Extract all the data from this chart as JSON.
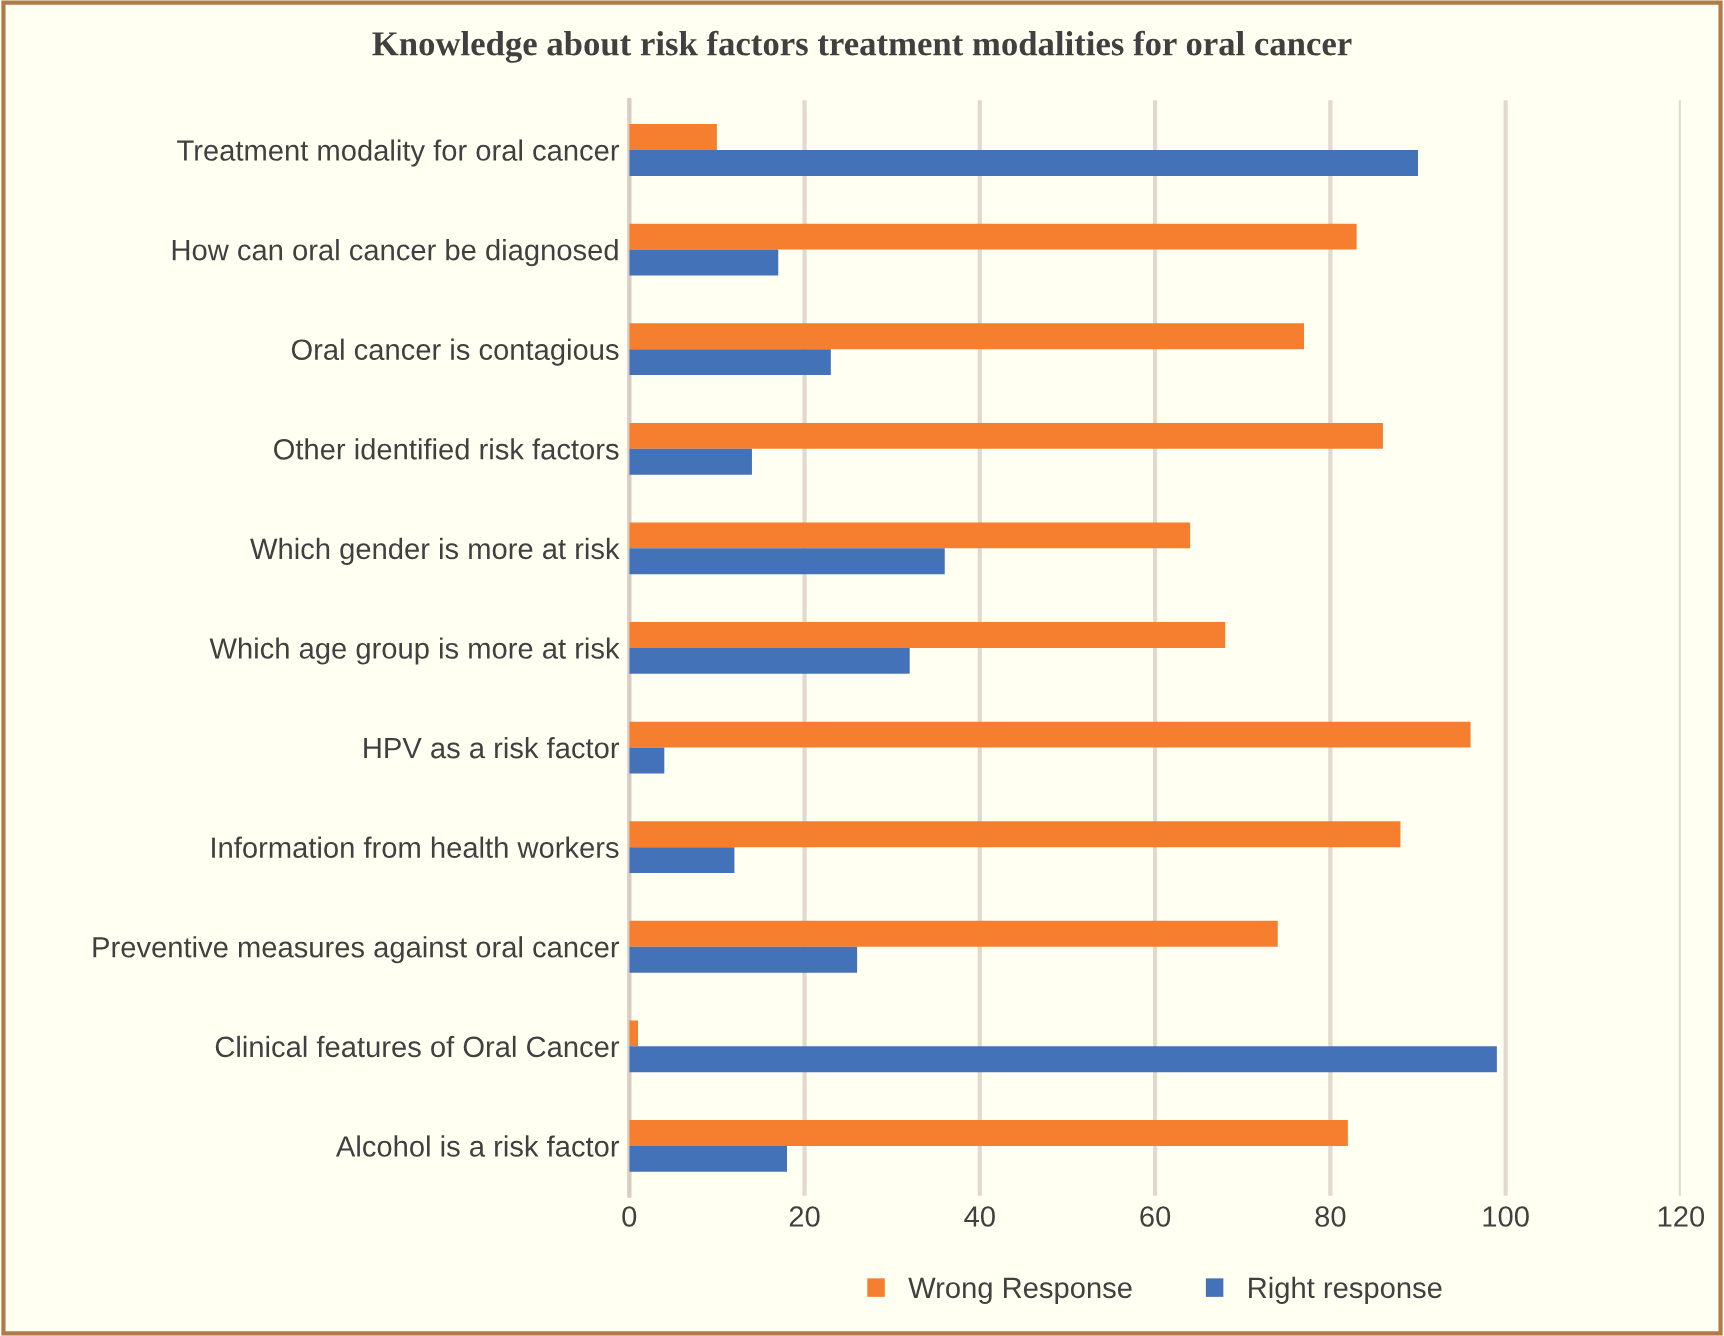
{
  "chart_data": {
    "type": "bar",
    "orientation": "horizontal",
    "title": "Knowledge about risk factors treatment modalities for oral cancer",
    "categories": [
      "Treatment modality for oral cancer",
      "How can oral cancer be diagnosed",
      "Oral cancer is contagious",
      "Other identified risk factors",
      "Which gender is more at risk",
      "Which age group is more at risk",
      "HPV as a risk factor",
      "Information from health workers",
      "Preventive measures against oral cancer",
      "Clinical features of Oral Cancer",
      "Alcohol is a risk factor"
    ],
    "series": [
      {
        "name": "Wrong Response",
        "color": "#f57f2f",
        "values": [
          10,
          83,
          77,
          86,
          64,
          68,
          96,
          88,
          74,
          1,
          82
        ]
      },
      {
        "name": "Right response",
        "color": "#4472b8",
        "values": [
          90,
          17,
          23,
          14,
          36,
          32,
          4,
          12,
          26,
          99,
          18
        ]
      }
    ],
    "xlim": [
      0,
      120
    ],
    "xticks": [
      0,
      20,
      40,
      60,
      80,
      100,
      120
    ],
    "grid": "x",
    "legend": "bottom"
  }
}
